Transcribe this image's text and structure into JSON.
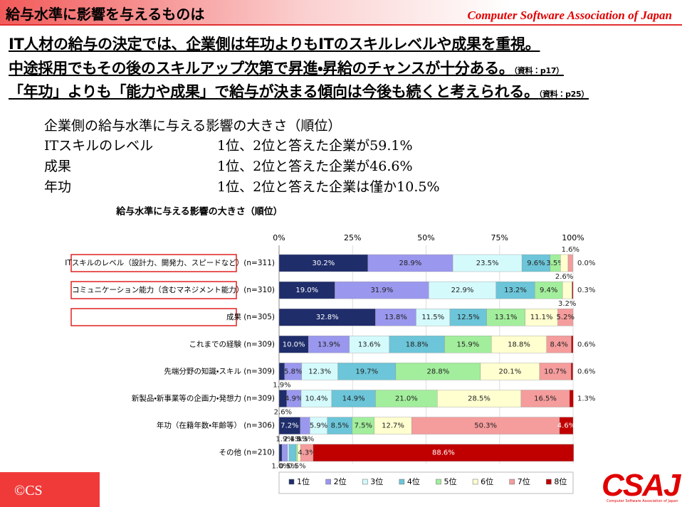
{
  "header": {
    "title": "給与水準に影響を与えるものは",
    "organization": "Computer Software Association of Japan"
  },
  "points": [
    {
      "text": "IT人材の給与の決定では、企業側は年功よりもITのスキルレベルや成果を重視。"
    },
    {
      "text": "中途採用でもその後のスキルアップ次第で昇進・昇給のチャンスが十分ある。",
      "note": "（資料：p17）"
    },
    {
      "text": "「年功」よりも「能力や成果」で給与が決まる傾向は今後も続くと考えられる。",
      "note": "（資料：p25）"
    }
  ],
  "summary": {
    "title": "企業側の給与水準に与える影響の大きさ（順位）",
    "rows": [
      {
        "label": "ITスキルのレベル",
        "text": "1位、2位と答えた企業が59.1%"
      },
      {
        "label": "成果",
        "text": "1位、2位と答えた企業が46.6%"
      },
      {
        "label": "年功",
        "text": "1位、2位と答えた企業は僅か10.5%"
      }
    ]
  },
  "chart_data": {
    "type": "bar",
    "orientation": "horizontal",
    "stacked": true,
    "title": "給与水準に与える影響の大きさ（順位）",
    "categories": [
      "ITスキルのレベル（設計力、開発力、スピードなど）(n=311)",
      "コミュニケーション能力（含むマネジメント能力）(n=310)",
      "成果 (n=305)",
      "これまでの経験 (n=309)",
      "先端分野の知識・スキル (n=309)",
      "新製品・新事業等の企画力・発想力 (n=309)",
      "年功（在籍年数・年齢等） (n=306)",
      "その他 (n=210)"
    ],
    "xlim": [
      0,
      100
    ],
    "xticks": [
      {
        "value": 0,
        "label": "0%"
      },
      {
        "value": 25,
        "label": "25%"
      },
      {
        "value": 50,
        "label": "50%"
      },
      {
        "value": 75,
        "label": "75%"
      },
      {
        "value": 100,
        "label": "100%"
      }
    ],
    "grid": true,
    "legend": "bottom",
    "series": [
      {
        "name": "1位",
        "color": "#1f2d6b",
        "values": [
          30.2,
          19.0,
          32.8,
          10.0,
          1.9,
          2.6,
          7.2,
          1.0
        ],
        "value_labels": [
          "30.2%",
          "19.0%",
          "32.8%",
          "10.0%",
          "1.9%",
          "2.6%",
          "7.2%",
          "1.0%"
        ]
      },
      {
        "name": "2位",
        "color": "#9a97ee",
        "values": [
          28.9,
          31.9,
          13.8,
          13.9,
          5.8,
          4.9,
          3.3,
          1.9
        ],
        "value_labels": [
          "28.9%",
          "31.9%",
          "13.8%",
          "13.9%",
          "5.8%",
          "4.9%",
          "3.3%",
          "1.9%"
        ]
      },
      {
        "name": "3位",
        "color": "#d4fafc",
        "values": [
          23.5,
          22.9,
          11.5,
          13.6,
          12.3,
          10.4,
          5.9,
          0.5
        ],
        "value_labels": [
          "23.5%",
          "22.9%",
          "11.5%",
          "13.6%",
          "12.3%",
          "10.4%",
          "5.9%",
          "0.5%"
        ]
      },
      {
        "name": "4位",
        "color": "#6cc5d8",
        "values": [
          9.6,
          13.2,
          12.5,
          18.8,
          19.7,
          14.9,
          8.5,
          2.4
        ],
        "value_labels": [
          "9.6%",
          "13.2%",
          "12.5%",
          "18.8%",
          "19.7%",
          "14.9%",
          "8.5%",
          "2.4%"
        ]
      },
      {
        "name": "5位",
        "color": "#a2ee9c",
        "values": [
          3.5,
          9.4,
          13.1,
          15.9,
          28.8,
          21.0,
          7.5,
          0.5
        ],
        "value_labels": [
          "3.5%",
          "9.4%",
          "13.1%",
          "15.9%",
          "28.8%",
          "21.0%",
          "7.5%",
          "0.5%"
        ]
      },
      {
        "name": "6位",
        "color": "#ffffd0",
        "values": [
          2.6,
          3.2,
          11.1,
          18.8,
          20.1,
          28.5,
          12.7,
          1.0
        ],
        "value_labels": [
          "2.6%",
          "3.2%",
          "11.1%",
          "18.8%",
          "20.1%",
          "28.5%",
          "12.7%",
          "1.0%"
        ]
      },
      {
        "name": "7位",
        "color": "#f59c9c",
        "values": [
          1.6,
          0.1,
          5.2,
          8.4,
          10.7,
          16.5,
          50.3,
          4.3
        ],
        "value_labels": [
          "1.6%",
          null,
          "5.2%",
          "8.4%",
          "10.7%",
          "16.5%",
          "50.3%",
          "4.3%"
        ]
      },
      {
        "name": "8位",
        "color": "#c00000",
        "values": [
          0.0,
          0.3,
          0.0,
          0.6,
          0.6,
          1.3,
          4.6,
          88.6
        ],
        "value_labels": [
          "0.0%",
          "0.3%",
          null,
          "0.6%",
          "0.6%",
          "1.3%",
          "4.6%",
          "88.6%"
        ]
      }
    ]
  },
  "footer": {
    "copyright": "©CS",
    "logo": "CSAJ",
    "logo_caption": "Computer Software Association of Japan"
  }
}
